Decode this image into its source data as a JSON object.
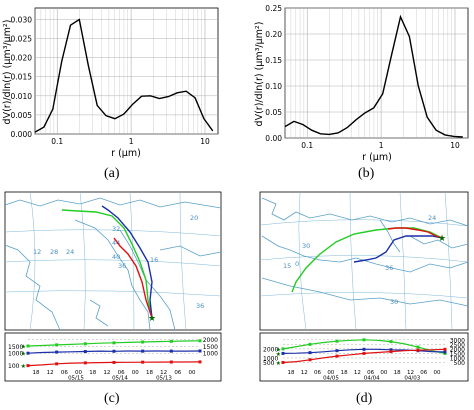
{
  "captions": {
    "a": "(a)",
    "b": "(b)",
    "c": "(c)",
    "d": "(d)"
  },
  "colors": {
    "curve": "#000000",
    "grid": "#b0b0b0",
    "map_land": "#ffffff",
    "map_sea": "#ffffff",
    "map_coast": "#5aa0c8",
    "map_grid": "#7fb8d8",
    "traj_green": "#22cc22",
    "traj_blue": "#1a2fa8",
    "traj_red": "#e01010",
    "start_star": "#006400"
  },
  "chart_data": [
    {
      "type": "line",
      "panel": "a",
      "xlabel": "r (μm)",
      "ylabel": "dV(r)/dln(r)   (μm³/μm²)",
      "xscale": "log",
      "xlim": [
        0.05,
        15
      ],
      "ylim": [
        0,
        0.033
      ],
      "xticks": [
        0.1,
        1,
        10
      ],
      "xtick_labels": [
        "0.1",
        "1",
        "10"
      ],
      "yticks": [
        0,
        0.005,
        0.01,
        0.015,
        0.02,
        0.025,
        0.03
      ],
      "ytick_labels": [
        "0.000",
        "0.005",
        "0.010",
        "0.015",
        "0.020",
        "0.025",
        "0.030"
      ],
      "grid": true,
      "x": [
        0.05,
        0.066,
        0.087,
        0.115,
        0.151,
        0.199,
        0.263,
        0.347,
        0.457,
        0.603,
        0.796,
        1.05,
        1.386,
        1.829,
        2.413,
        3.184,
        4.202,
        5.544,
        7.315,
        9.652,
        12.736
      ],
      "y": [
        0.0005,
        0.0018,
        0.0065,
        0.019,
        0.0285,
        0.03,
        0.018,
        0.0075,
        0.0048,
        0.004,
        0.0052,
        0.0078,
        0.0099,
        0.01,
        0.0093,
        0.0098,
        0.0108,
        0.0112,
        0.0095,
        0.004,
        0.0008
      ]
    },
    {
      "type": "line",
      "panel": "b",
      "xlabel": "r (μm)",
      "ylabel": "dV(r)/dln(r)   (μm³/μm²)",
      "xscale": "log",
      "xlim": [
        0.05,
        15
      ],
      "ylim": [
        0,
        0.25
      ],
      "xticks": [
        0.1,
        1,
        10
      ],
      "xtick_labels": [
        "0.1",
        "1",
        "10"
      ],
      "yticks": [
        0,
        0.05,
        0.1,
        0.15,
        0.2,
        0.25
      ],
      "ytick_labels": [
        "0.00",
        "0.05",
        "0.10",
        "0.15",
        "0.20",
        "0.25"
      ],
      "grid": true,
      "x": [
        0.05,
        0.066,
        0.087,
        0.115,
        0.151,
        0.199,
        0.263,
        0.347,
        0.457,
        0.603,
        0.796,
        1.05,
        1.386,
        1.829,
        2.413,
        3.184,
        4.202,
        5.544,
        7.315,
        9.652,
        12.736
      ],
      "y": [
        0.022,
        0.032,
        0.026,
        0.015,
        0.008,
        0.007,
        0.01,
        0.02,
        0.035,
        0.048,
        0.058,
        0.085,
        0.16,
        0.233,
        0.195,
        0.1,
        0.04,
        0.015,
        0.006,
        0.003,
        0.002
      ]
    },
    {
      "type": "line",
      "panel": "c",
      "chart_kind": "back-trajectory height profile",
      "ylim": [
        0,
        2100
      ],
      "yticks_left": [
        100,
        1000,
        1500
      ],
      "ytick_labels_left": [
        "100",
        "1000",
        "1500"
      ],
      "yticks_right": [
        1000,
        1500,
        2000
      ],
      "ytick_labels_right": [
        "1000",
        "1500",
        "2000"
      ],
      "x_labels": [
        "18",
        "12",
        "06",
        "00",
        "18",
        "12",
        "06",
        "00",
        "18",
        "12",
        "06",
        "00"
      ],
      "date_labels": [
        "05/15",
        "05/14",
        "05/13"
      ],
      "series": [
        {
          "color_key": "traj_green",
          "values": [
            1520,
            1560,
            1600,
            1640,
            1680,
            1720,
            1750,
            1780,
            1810,
            1840,
            1860,
            1880,
            1900
          ]
        },
        {
          "color_key": "traj_blue",
          "values": [
            1000,
            1050,
            1080,
            1100,
            1120,
            1150,
            1140,
            1160,
            1150,
            1160,
            1150,
            1155,
            1160
          ]
        },
        {
          "color_key": "traj_red",
          "values": [
            100,
            150,
            230,
            280,
            300,
            320,
            330,
            340,
            350,
            355,
            360,
            365,
            370
          ]
        }
      ]
    },
    {
      "type": "line",
      "panel": "d",
      "chart_kind": "back-trajectory height profile",
      "ylim": [
        0,
        3200
      ],
      "yticks_left": [
        500,
        1000,
        2000
      ],
      "ytick_labels_left": [
        "500",
        "1000",
        "2000"
      ],
      "yticks_right": [
        500,
        1000,
        1500,
        2000,
        2500,
        3000
      ],
      "ytick_labels_right": [
        "500",
        "1000",
        "1500",
        "2000",
        "2500",
        "3000"
      ],
      "x_labels": [
        "18",
        "12",
        "06",
        "00",
        "18",
        "12",
        "06",
        "00",
        "18",
        "12",
        "06",
        "00"
      ],
      "date_labels": [
        "04/05",
        "04/04",
        "04/03"
      ],
      "series": [
        {
          "color_key": "traj_green",
          "values": [
            2000,
            2250,
            2500,
            2700,
            2850,
            2950,
            3000,
            2950,
            2800,
            2550,
            2200,
            1800,
            1500
          ]
        },
        {
          "color_key": "traj_blue",
          "values": [
            1500,
            1520,
            1580,
            1680,
            1800,
            1900,
            1950,
            1950,
            1900,
            1880,
            1800,
            1700,
            1650
          ]
        },
        {
          "color_key": "traj_red",
          "values": [
            500,
            600,
            800,
            1000,
            1200,
            1350,
            1500,
            1600,
            1700,
            1800,
            1850,
            1900,
            1950
          ]
        }
      ]
    }
  ],
  "maps": {
    "c": {
      "latitude_labels": [
        "44",
        "40",
        "36",
        "32",
        "28",
        "24",
        "20",
        "16",
        "12",
        "36"
      ]
    },
    "d": {
      "latitude_labels": [
        "30",
        "15",
        "0",
        "24",
        "36",
        "30"
      ]
    }
  }
}
